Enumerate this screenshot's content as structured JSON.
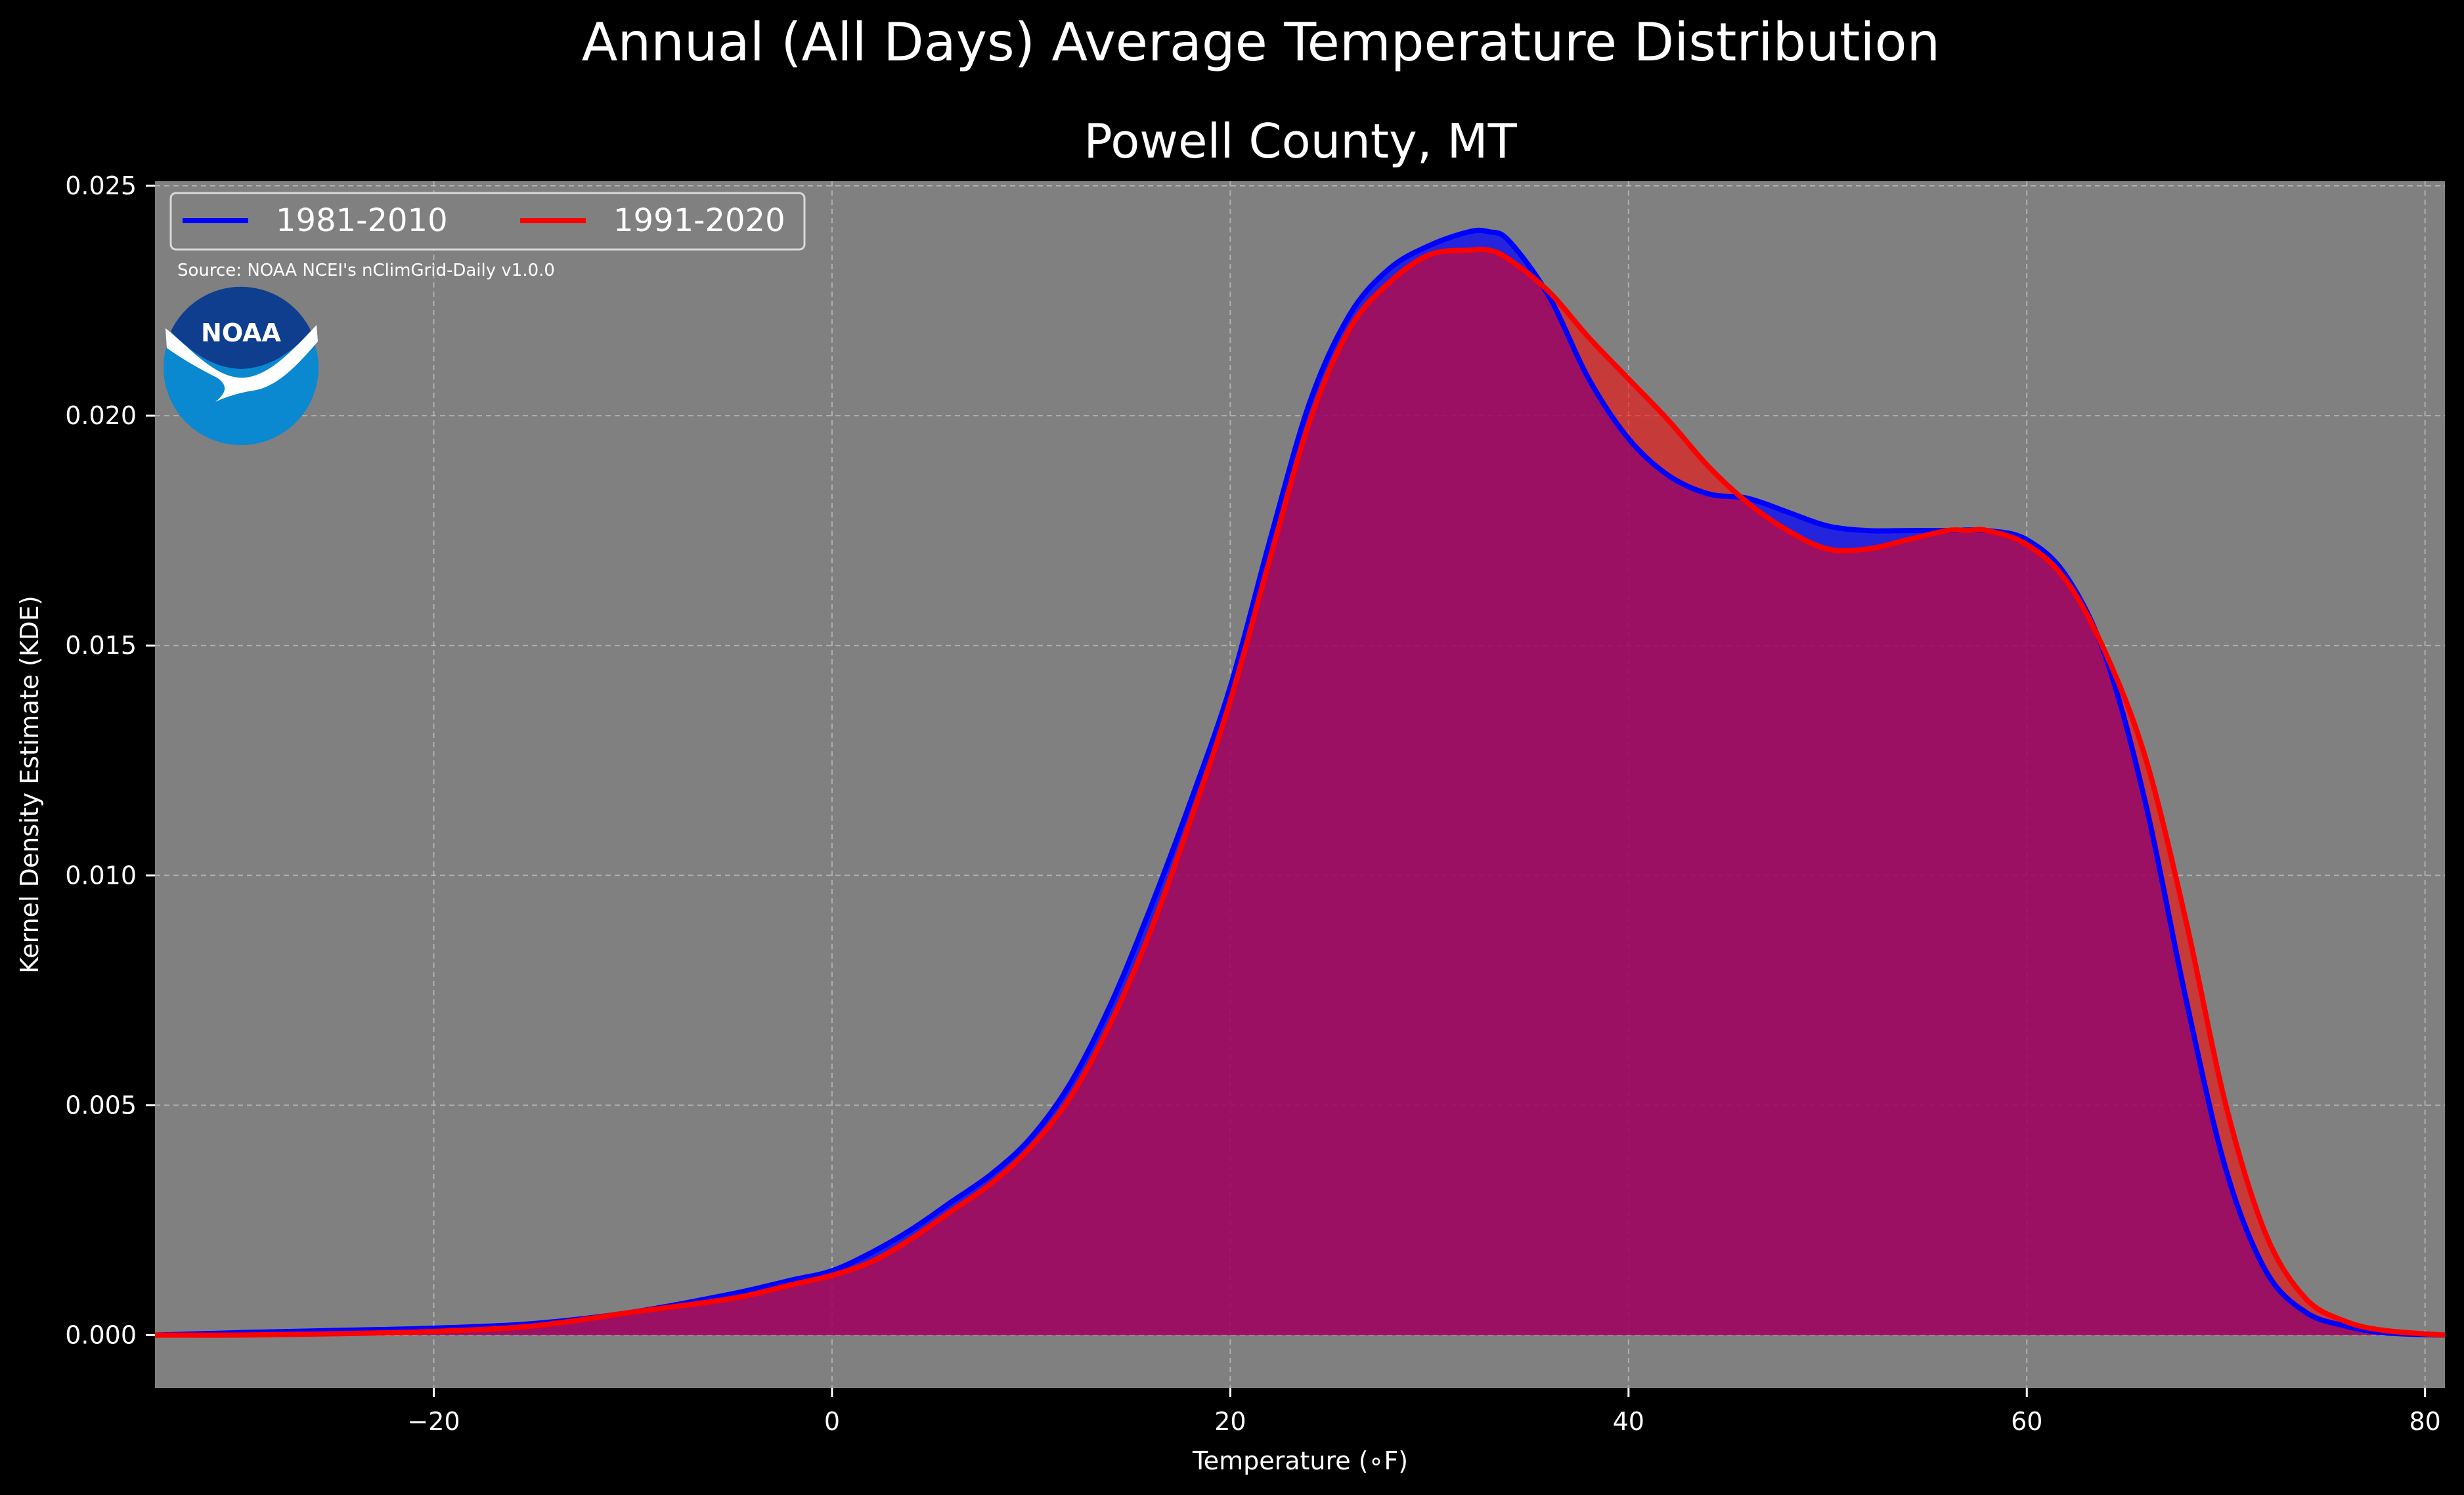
{
  "chart_data": {
    "type": "area",
    "title": "Annual (All Days) Average Temperature Distribution",
    "subtitle": "Powell County, MT",
    "xlabel": "Temperature ($^\\circ$F)",
    "xlabel_display": "Temperature (∘F)",
    "ylabel": "Kernel Density Estimate (KDE)",
    "xlim": [
      -34,
      81
    ],
    "ylim": [
      -0.00115,
      0.0251
    ],
    "x_ticks": [
      -20,
      0,
      20,
      40,
      60,
      80
    ],
    "x_tick_labels": [
      "−20",
      "0",
      "20",
      "40",
      "60",
      "80"
    ],
    "y_ticks": [
      0.0,
      0.005,
      0.01,
      0.015,
      0.02,
      0.025
    ],
    "y_tick_labels": [
      "0.000",
      "0.005",
      "0.010",
      "0.015",
      "0.020",
      "0.025"
    ],
    "grid": true,
    "legend_placement": "top-left",
    "source_note": "Source: NOAA NCEI's nClimGrid-Daily v1.0.0",
    "logo_text": "NOAA",
    "colors": {
      "background": "#000000",
      "plot_background": "#808080",
      "series_1": "#0000ff",
      "series_2": "#ff0000",
      "overlap_fill": "#9e1f5c"
    },
    "series": [
      {
        "name": "1981-2010",
        "color": "#0000ff",
        "x": [
          -34,
          -30,
          -25,
          -20,
          -15,
          -10,
          -5,
          -2,
          0,
          2,
          4,
          6,
          8,
          10,
          12,
          14,
          16,
          18,
          20,
          22,
          24,
          26,
          28,
          30,
          32,
          33,
          34,
          36,
          38,
          40,
          42,
          44,
          46,
          48,
          50,
          52,
          54,
          56,
          58,
          60,
          62,
          64,
          66,
          68,
          70,
          72,
          74,
          76,
          78,
          81
        ],
        "values": [
          0.0,
          5e-05,
          0.0001,
          0.00015,
          0.00025,
          0.0005,
          0.0009,
          0.0012,
          0.0014,
          0.0018,
          0.0023,
          0.0029,
          0.0035,
          0.0043,
          0.0055,
          0.0072,
          0.0093,
          0.0116,
          0.0141,
          0.0173,
          0.0203,
          0.0222,
          0.0232,
          0.0237,
          0.024,
          0.024,
          0.0238,
          0.0226,
          0.0208,
          0.0195,
          0.0187,
          0.0183,
          0.0182,
          0.0179,
          0.0176,
          0.0175,
          0.0175,
          0.0175,
          0.0175,
          0.0173,
          0.0165,
          0.0147,
          0.0115,
          0.0073,
          0.0036,
          0.0014,
          0.0005,
          0.0002,
          5e-05,
          0.0
        ]
      },
      {
        "name": "1991-2020",
        "color": "#ff0000",
        "x": [
          -34,
          -30,
          -25,
          -20,
          -15,
          -10,
          -5,
          -2,
          0,
          2,
          4,
          6,
          8,
          10,
          12,
          14,
          16,
          18,
          20,
          22,
          24,
          26,
          28,
          30,
          32,
          33,
          34,
          36,
          38,
          40,
          42,
          44,
          46,
          48,
          50,
          52,
          54,
          56,
          57,
          58,
          60,
          62,
          64,
          66,
          68,
          70,
          72,
          74,
          76,
          78,
          81
        ],
        "values": [
          0.0,
          0.0,
          3e-05,
          8e-05,
          0.0002,
          0.0005,
          0.0008,
          0.0011,
          0.0013,
          0.0016,
          0.0021,
          0.0027,
          0.0033,
          0.0041,
          0.0052,
          0.0068,
          0.0088,
          0.0112,
          0.0138,
          0.0169,
          0.0199,
          0.0219,
          0.0229,
          0.0235,
          0.0236,
          0.0236,
          0.0234,
          0.0227,
          0.0217,
          0.0208,
          0.0199,
          0.0189,
          0.0181,
          0.0175,
          0.0171,
          0.0171,
          0.0173,
          0.0175,
          0.0175,
          0.0175,
          0.0172,
          0.0164,
          0.0148,
          0.0125,
          0.009,
          0.005,
          0.0022,
          0.0008,
          0.0003,
          0.0001,
          0.0
        ]
      }
    ]
  }
}
